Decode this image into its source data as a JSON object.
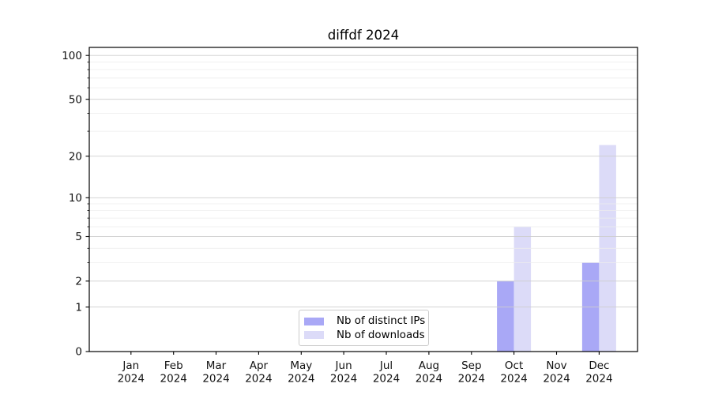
{
  "page": {
    "background": "#ffffff"
  },
  "chart_data": {
    "type": "bar",
    "title": "diffdf 2024",
    "x_tick_months": [
      "Jan",
      "Feb",
      "Mar",
      "Apr",
      "May",
      "Jun",
      "Jul",
      "Aug",
      "Sep",
      "Oct",
      "Nov",
      "Dec"
    ],
    "x_tick_year": "2024",
    "series": [
      {
        "name": "Nb of distinct IPs",
        "color": "#a9a8f6",
        "values": [
          0,
          0,
          0,
          0,
          0,
          0,
          0,
          0,
          0,
          2,
          0,
          3
        ]
      },
      {
        "name": "Nb of downloads",
        "color": "#dcdbf8",
        "values": [
          0,
          0,
          0,
          0,
          0,
          0,
          0,
          0,
          0,
          6,
          0,
          24
        ]
      }
    ],
    "yscale": "log1p",
    "major_yticks": [
      0,
      1,
      2,
      5,
      10,
      20,
      50,
      100
    ],
    "minor_yticks": [
      3,
      4,
      6,
      7,
      8,
      9,
      30,
      40,
      60,
      70,
      80,
      90
    ],
    "ylim": [
      0,
      113.5
    ],
    "grid": true,
    "legend_position": "lower-center",
    "colors": {
      "spine": "#000000",
      "major_grid": "#cdcdcd",
      "minor_grid": "#ededed",
      "tick_label": "#111111"
    }
  }
}
